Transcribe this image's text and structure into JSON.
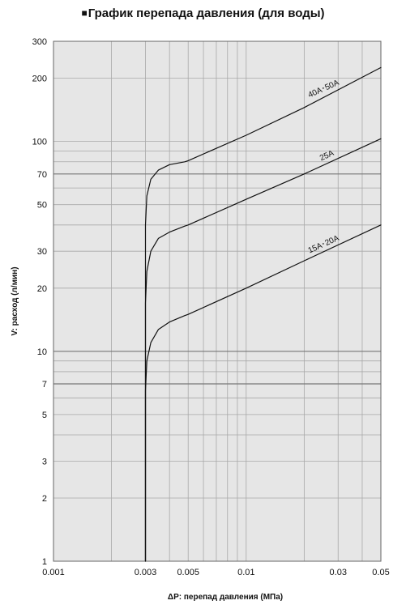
{
  "chart_data": {
    "type": "line",
    "title": "График перепада давления (для воды)",
    "title_marker": "■",
    "xlabel": "ΔP: перепад давления (МПа)",
    "ylabel": "V: расход (л/мин)",
    "x_scale": "log",
    "y_scale": "log",
    "xlim": [
      0.001,
      0.05
    ],
    "ylim": [
      1,
      300
    ],
    "x_ticks": [
      0.001,
      0.003,
      0.005,
      0.01,
      0.03,
      0.05
    ],
    "x_tick_labels": [
      "0.001",
      "0.003",
      "0.005",
      "0.01",
      "0.03",
      "0.05"
    ],
    "y_ticks": [
      1,
      2,
      3,
      5,
      7,
      10,
      20,
      30,
      50,
      70,
      100,
      200,
      300
    ],
    "y_tick_labels": [
      "1",
      "2",
      "3",
      "5",
      "7",
      "10",
      "20",
      "30",
      "50",
      "70",
      "100",
      "200",
      "300"
    ],
    "x_grid": [
      0.002,
      0.003,
      0.004,
      0.005,
      0.006,
      0.007,
      0.008,
      0.009,
      0.01,
      0.02,
      0.03,
      0.04
    ],
    "y_grid": [
      2,
      3,
      4,
      5,
      6,
      7,
      8,
      9,
      10,
      20,
      30,
      40,
      50,
      60,
      70,
      80,
      90,
      100,
      200
    ],
    "y_grid_bold": [
      7,
      10,
      70
    ],
    "grid": true,
    "series": [
      {
        "name": "15A･20A",
        "x": [
          0.003,
          0.003,
          0.00305,
          0.0032,
          0.0035,
          0.004,
          0.0048,
          0.005,
          0.01,
          0.02,
          0.05
        ],
        "y": [
          1,
          6.5,
          9,
          11,
          12.7,
          13.8,
          14.8,
          15,
          20,
          27,
          40
        ]
      },
      {
        "name": "25A",
        "x": [
          0.003,
          0.003,
          0.00305,
          0.0032,
          0.0035,
          0.004,
          0.0048,
          0.005,
          0.01,
          0.02,
          0.05
        ],
        "y": [
          1,
          17,
          24,
          30,
          34.5,
          37,
          39.5,
          40,
          53,
          70,
          103
        ]
      },
      {
        "name": "40A･50A",
        "x": [
          0.003,
          0.003,
          0.00305,
          0.0032,
          0.0035,
          0.004,
          0.0048,
          0.005,
          0.01,
          0.02,
          0.05
        ],
        "y": [
          1,
          40,
          55,
          66,
          73,
          77.5,
          80,
          81,
          107,
          145,
          225
        ]
      }
    ],
    "series_label_angle": -24
  }
}
